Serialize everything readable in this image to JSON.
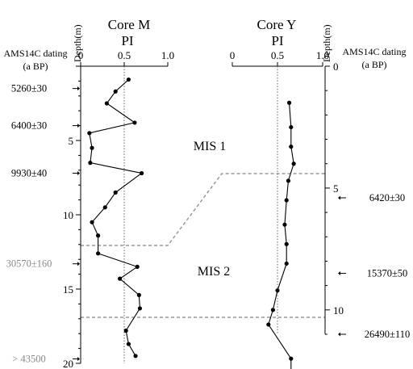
{
  "chart_data": [
    {
      "type": "line",
      "core": "M",
      "title_line1": "Core  M",
      "title_line2": "PI",
      "x_ticks": [
        "0",
        "0.5",
        "1.0"
      ],
      "xlim": [
        0,
        1
      ],
      "depth_label": "Depth(m)",
      "depth_ticks": [
        "5",
        "10",
        "15",
        "20"
      ],
      "depth_lim": [
        0,
        20
      ],
      "reference_line_x": 0.5,
      "series": [
        {
          "x": [
            0.55,
            0.4,
            0.3,
            0.62,
            0.1,
            0.13,
            0.11,
            0.7,
            0.4,
            0.28,
            0.13,
            0.2,
            0.2,
            0.65,
            0.45,
            0.67,
            0.68,
            0.52,
            0.55,
            0.63
          ],
          "y": [
            0.9,
            1.7,
            2.5,
            3.8,
            4.5,
            5.5,
            6.5,
            7.2,
            8.5,
            9.5,
            10.5,
            11.4,
            12.6,
            13.5,
            14.3,
            15.4,
            16.3,
            17.8,
            18.7,
            19.5
          ]
        }
      ],
      "dating_header": [
        "AMS14C dating",
        "(a BP)"
      ],
      "dating_labels": [
        {
          "text": "5260±30",
          "depth": 1.5
        },
        {
          "text": "6400±30",
          "depth": 4.0
        },
        {
          "text": "9930±40",
          "depth": 7.2
        },
        {
          "text": "30570±160",
          "depth": 13.3,
          "muted": true
        },
        {
          "text": "> 43500",
          "depth": 19.7,
          "muted": true
        }
      ]
    },
    {
      "type": "line",
      "core": "Y",
      "title_line1": "Core  Y",
      "title_line2": "PI",
      "x_ticks": [
        "0",
        "0.5",
        "1.0"
      ],
      "xlim": [
        0,
        1
      ],
      "depth_label": "Depth(m)",
      "depth_ticks": [
        "0",
        "5",
        "10"
      ],
      "depth_lim": [
        0,
        11
      ],
      "reference_line_x": 0.5,
      "series": [
        {
          "x": [
            0.63,
            0.65,
            0.65,
            0.68,
            0.62,
            0.6,
            0.58,
            0.6,
            0.6,
            0.5,
            0.45,
            0.4,
            0.65,
            0.65
          ],
          "y": [
            1.5,
            2.5,
            3.3,
            4.0,
            4.7,
            5.5,
            6.5,
            7.3,
            8.1,
            9.2,
            10.0,
            10.6,
            12.0,
            12.8
          ]
        }
      ],
      "dating_header": [
        "AMS14C dating",
        "(a BP)"
      ],
      "dating_labels": [
        {
          "text": "6420±30",
          "depth": 5.4
        },
        {
          "text": "15370±50",
          "depth": 8.5
        },
        {
          "text": "26490±110",
          "depth": 11.0
        }
      ]
    }
  ],
  "stage_labels": {
    "mis1": "MIS 1",
    "mis2": "MIS 2"
  },
  "colors": {
    "line": "#000000",
    "boundary": "#999999",
    "muted_text": "#888888"
  }
}
